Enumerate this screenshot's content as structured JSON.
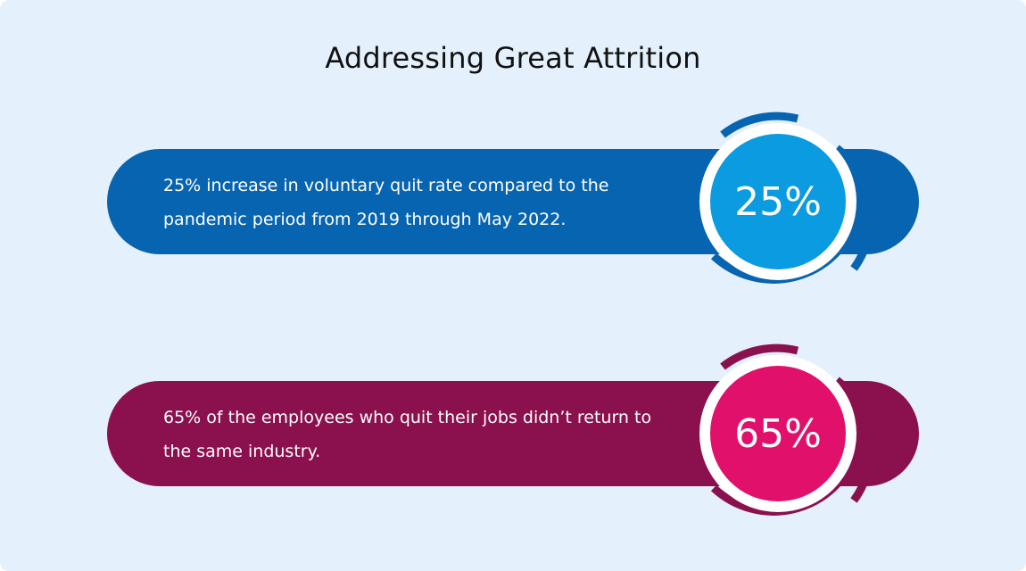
{
  "title": "Addressing Great Attrition",
  "stats": [
    {
      "value": "25%",
      "text": "25% increase in voluntary quit rate compared to the pandemic period from 2019 through May 2022.",
      "colors": {
        "bar": "#0764b0",
        "circle": "#0a9be0"
      }
    },
    {
      "value": "65%",
      "text": "65% of the employees who quit their jobs didn’t return to the same industry.",
      "colors": {
        "bar": "#8b104e",
        "circle": "#e0106b"
      }
    }
  ]
}
